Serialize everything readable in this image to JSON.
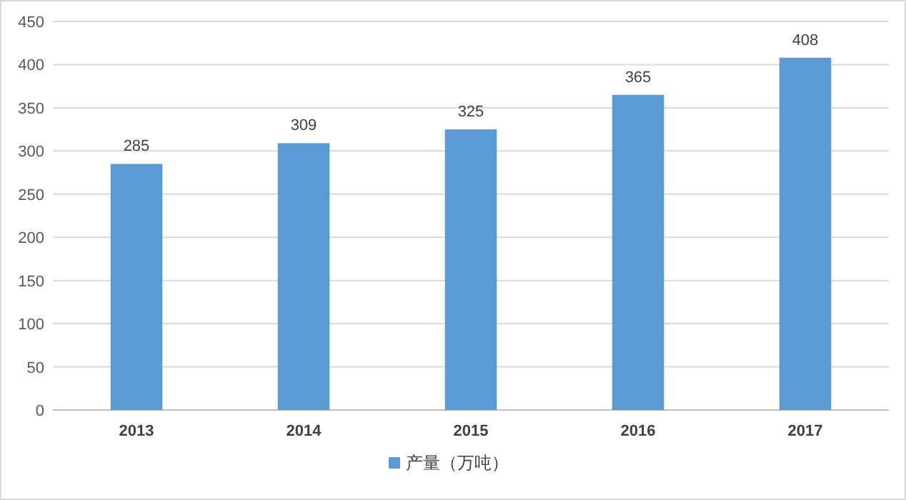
{
  "chart_data": {
    "type": "bar",
    "categories": [
      "2013",
      "2014",
      "2015",
      "2016",
      "2017"
    ],
    "series": [
      {
        "name": "产量（万吨）",
        "color": "#5b9bd5",
        "values": [
          285,
          309,
          325,
          365,
          408
        ]
      }
    ],
    "ylim": [
      0,
      450
    ],
    "yticks": [
      0,
      50,
      100,
      150,
      200,
      250,
      300,
      350,
      400,
      450
    ],
    "grid": "y",
    "legend": "bottom",
    "data_labels": true
  }
}
